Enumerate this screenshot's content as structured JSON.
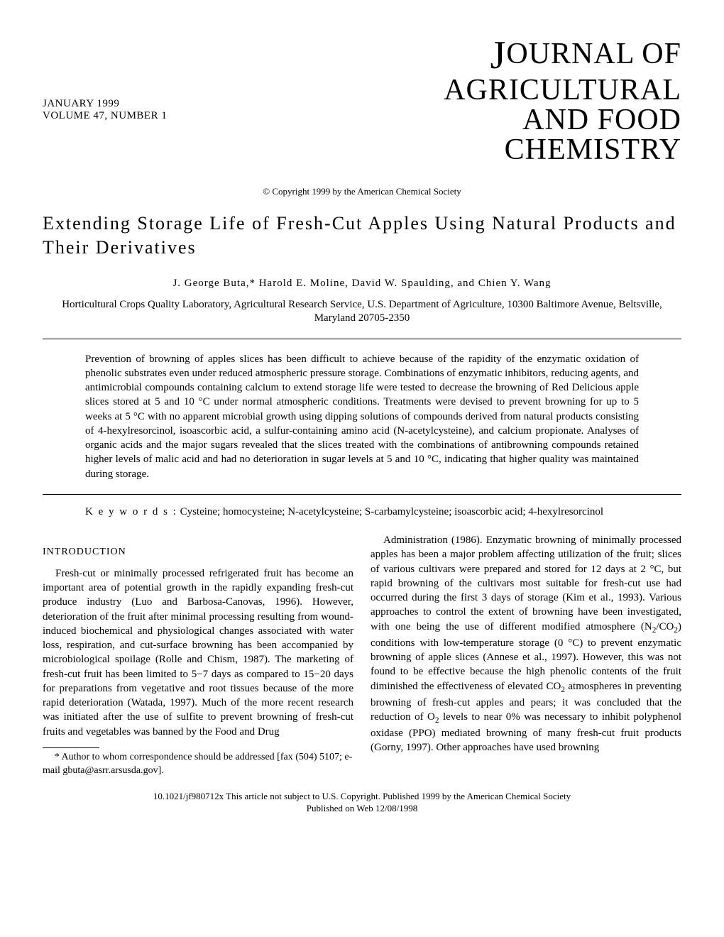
{
  "header": {
    "date": "JANUARY 1999",
    "volume": "VOLUME 47, NUMBER 1",
    "journal_line1_j": "J",
    "journal_line1_rest": "OURNAL OF",
    "journal_line2": "AGRICULTURAL",
    "journal_line3": "AND FOOD",
    "journal_line4": "CHEMISTRY"
  },
  "copyright": "© Copyright 1999 by the American Chemical Society",
  "title": "Extending Storage Life of Fresh-Cut Apples Using Natural Products and Their Derivatives",
  "authors": "J. George Buta,* Harold E. Moline, David W. Spaulding, and Chien Y. Wang",
  "affiliation": "Horticultural Crops Quality Laboratory, Agricultural Research Service, U.S. Department of Agriculture, 10300 Baltimore Avenue, Beltsville, Maryland 20705-2350",
  "abstract": "Prevention of browning of apples slices has been difficult to achieve because of the rapidity of the enzymatic oxidation of phenolic substrates even under reduced atmospheric pressure storage. Combinations of enzymatic inhibitors, reducing agents, and antimicrobial compounds containing calcium to extend storage life were tested to decrease the browning of Red Delicious apple slices stored at 5 and 10 °C under normal atmospheric conditions. Treatments were devised to prevent browning for up to 5 weeks at 5 °C with no apparent microbial growth using dipping solutions of compounds derived from natural products consisting of 4-hexylresorcinol, isoascorbic acid, a sulfur-containing amino acid (N-acetylcysteine), and calcium propionate. Analyses of organic acids and the major sugars revealed that the slices treated with the combinations of antibrowning compounds retained higher levels of malic acid and had no deterioration in sugar levels at 5 and 10 °C, indicating that higher quality was maintained during storage.",
  "keywords_label": "K e y w o r d s :",
  "keywords_text": "Cysteine; homocysteine; N-acetylcysteine; S-carbamylcysteine; isoascorbic acid; 4-hexyl­resorcinol",
  "section": "INTRODUCTION",
  "col_left": "Fresh-cut or minimally processed refrigerated fruit has become an important area of potential growth in the rapidly expanding fresh-cut produce industry (Luo and Barbosa-Canovas, 1996). However, deterioration of the fruit after minimal processing resulting from wound-induced biochemical and physiological changes associated with water loss, respiration, and cut-surface browning has been accompanied by microbiological spoilage (Rolle and Chism, 1987). The marketing of fresh-cut fruit has been limited to 5−7 days as compared to 15−20 days for preparations from vegetative and root tissues because of the more rapid deterioration (Watada, 1997). Much of the more recent research was initiated after the use of sulfite to prevent browning of fresh-cut fruits and vegetables was banned by the Food and Drug",
  "col_right_a": "Administration (1986). Enzymatic browning of minimally processed apples has been a major problem affecting utilization of the fruit; slices of various cultivars were prepared and stored for 12 days at 2 °C, but rapid browning of the cultivars most suitable for fresh-cut use had occurred during the first 3 days of storage (Kim et al., 1993). Various approaches to control the extent of browning have been investigated, with one being the use of different modified atmosphere (N",
  "col_right_b": ") conditions with low-temperature storage (0 °C) to prevent enzymatic browning of apple slices (Annese et al., 1997). However, this was not found to be effective because the high phenolic contents of the fruit diminished the effectiveness of elevated CO",
  "col_right_c": " atmospheres in preventing browning of fresh-cut apples and pears; it was concluded that the reduction of O",
  "col_right_d": " levels to near 0% was necessary to inhibit polyphenol oxidase (PPO) mediated browning of many fresh-cut fruit products (Gorny, 1997). Other approaches have used browning",
  "footnote": "* Author to whom correspondence should be addressed [fax (504) 5107; e-mail gbuta@asrr.arsusda.gov].",
  "doi": "10.1021/jf980712x  This article not subject to U.S. Copyright.  Published 1999 by the American Chemical Society",
  "pubweb": "Published on Web 12/08/1998"
}
